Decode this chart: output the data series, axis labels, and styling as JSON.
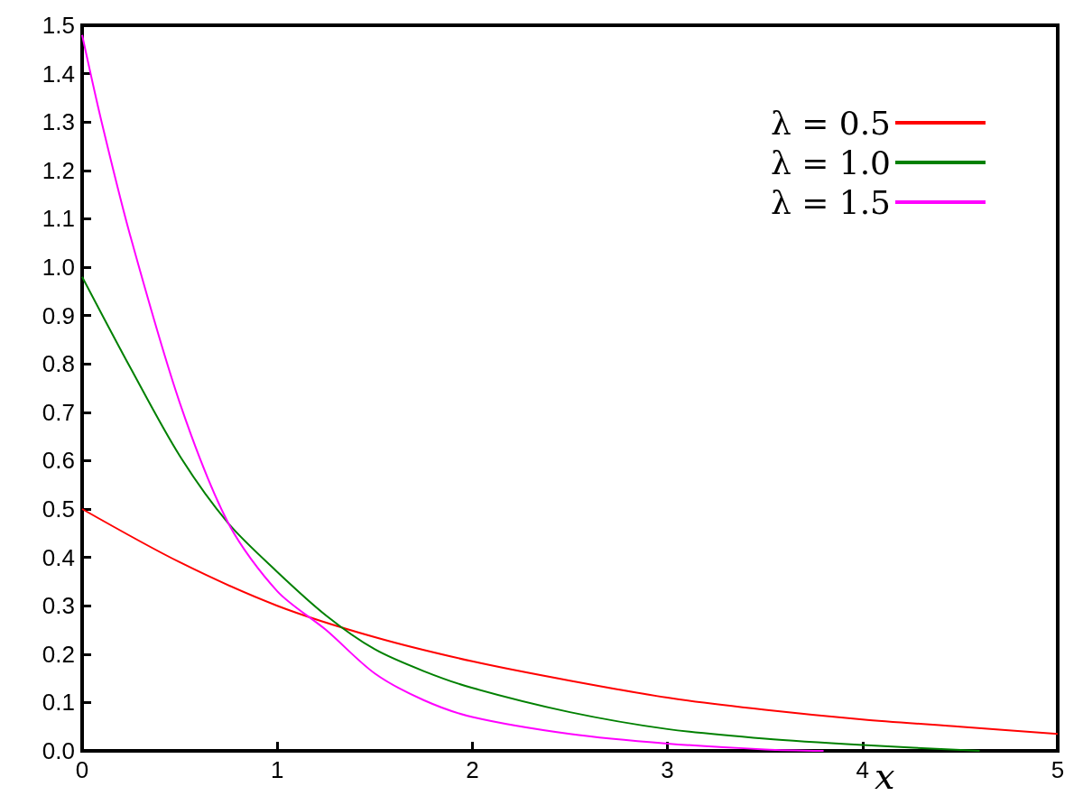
{
  "chart_data": {
    "type": "line",
    "xlabel": "x",
    "xlim": [
      0,
      5
    ],
    "xticks": [
      0,
      1,
      2,
      3,
      4,
      5
    ],
    "ylim": [
      0,
      1.5
    ],
    "yticks": [
      {
        "value": 0,
        "label": "0.0"
      },
      0.1,
      0.2,
      0.3,
      0.4,
      0.5,
      0.6,
      0.7,
      0.8,
      0.9,
      {
        "value": 1,
        "label": "1.0"
      },
      1.1,
      1.2,
      1.3,
      1.4,
      1.5
    ],
    "grid": false,
    "legend": "top right",
    "marker": "none",
    "line_style": "solid",
    "series": [
      {
        "name": "λ = 0.5",
        "color": "#ff0000",
        "x": [
          0,
          0.5,
          1,
          1.5,
          2,
          2.5,
          3,
          3.5,
          4,
          4.5,
          5
        ],
        "values": [
          0.5,
          0.39,
          0.3,
          0.235,
          0.185,
          0.145,
          0.11,
          0.085,
          0.065,
          0.05,
          0.035
        ]
      },
      {
        "name": "λ = 1.0",
        "color": "#008000",
        "x": [
          0,
          0.25,
          0.5,
          0.75,
          1,
          1.25,
          1.5,
          1.75,
          2,
          2.5,
          3,
          3.5,
          4,
          4.6
        ],
        "values": [
          0.98,
          0.79,
          0.61,
          0.47,
          0.37,
          0.28,
          0.21,
          0.165,
          0.13,
          0.08,
          0.045,
          0.025,
          0.012,
          0
        ]
      },
      {
        "name": "λ = 1.5",
        "color": "#ff00ff",
        "x": [
          0,
          0.1,
          0.25,
          0.5,
          0.75,
          1,
          1.25,
          1.5,
          1.75,
          2,
          2.5,
          3,
          3.5,
          3.8
        ],
        "values": [
          1.48,
          1.3,
          1.06,
          0.72,
          0.47,
          0.33,
          0.25,
          0.16,
          0.105,
          0.07,
          0.035,
          0.015,
          0.003,
          0
        ]
      }
    ]
  }
}
